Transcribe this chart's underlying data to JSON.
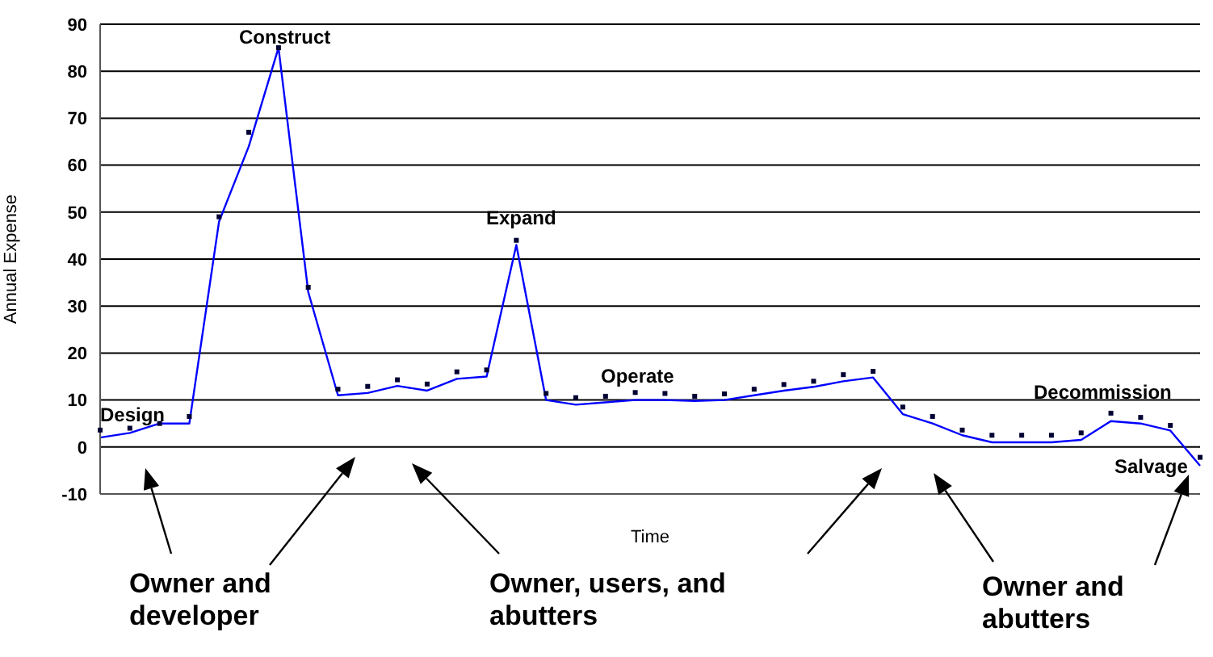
{
  "chart_data": {
    "type": "line",
    "xlabel": "Time",
    "ylabel": "Annual Expense",
    "categories": [
      null,
      null,
      null,
      null,
      null,
      null,
      null,
      null,
      null,
      null,
      null,
      null,
      null,
      null,
      null,
      null,
      null,
      null,
      null,
      null,
      null,
      null,
      null,
      null,
      null,
      null,
      null,
      null,
      null,
      null,
      null,
      null,
      null,
      null,
      null,
      null,
      null,
      null
    ],
    "series": [
      {
        "color": "#0000ff",
        "marker": "none",
        "line_style": "solid",
        "values": [
          2,
          3,
          5,
          5,
          48,
          64,
          85,
          33,
          11,
          11.5,
          13,
          12,
          14.5,
          15,
          43,
          10,
          9,
          9.5,
          10,
          10,
          9.8,
          10,
          11,
          12,
          12.8,
          14,
          14.8,
          7,
          5,
          2.5,
          1,
          1,
          1,
          1.5,
          5.5,
          5,
          3.5,
          -4
        ]
      },
      {
        "type": "scatter",
        "color": "#000033",
        "marker": "square",
        "values": [
          3.6,
          4,
          5,
          6.5,
          49,
          67,
          85,
          34,
          12.3,
          12.9,
          14.3,
          13.4,
          16,
          16.4,
          44,
          11.4,
          10.5,
          10.8,
          11.6,
          11.4,
          10.8,
          11.3,
          12.3,
          13.3,
          14,
          15.4,
          16.1,
          8.5,
          6.5,
          3.6,
          2.5,
          2.5,
          2.5,
          3,
          7.2,
          6.3,
          4.6,
          -2.2
        ]
      }
    ],
    "ylim": [
      -10,
      90
    ],
    "yticks": [
      -10,
      0,
      10,
      20,
      30,
      40,
      50,
      60,
      70,
      80,
      90
    ],
    "grid": "y",
    "annotations": [
      "Design",
      "Construct",
      "Expand",
      "Operate",
      "Decommission",
      "Salvage",
      "Owner and developer",
      "Owner, users, and abutters",
      "Owner and abutters"
    ]
  }
}
